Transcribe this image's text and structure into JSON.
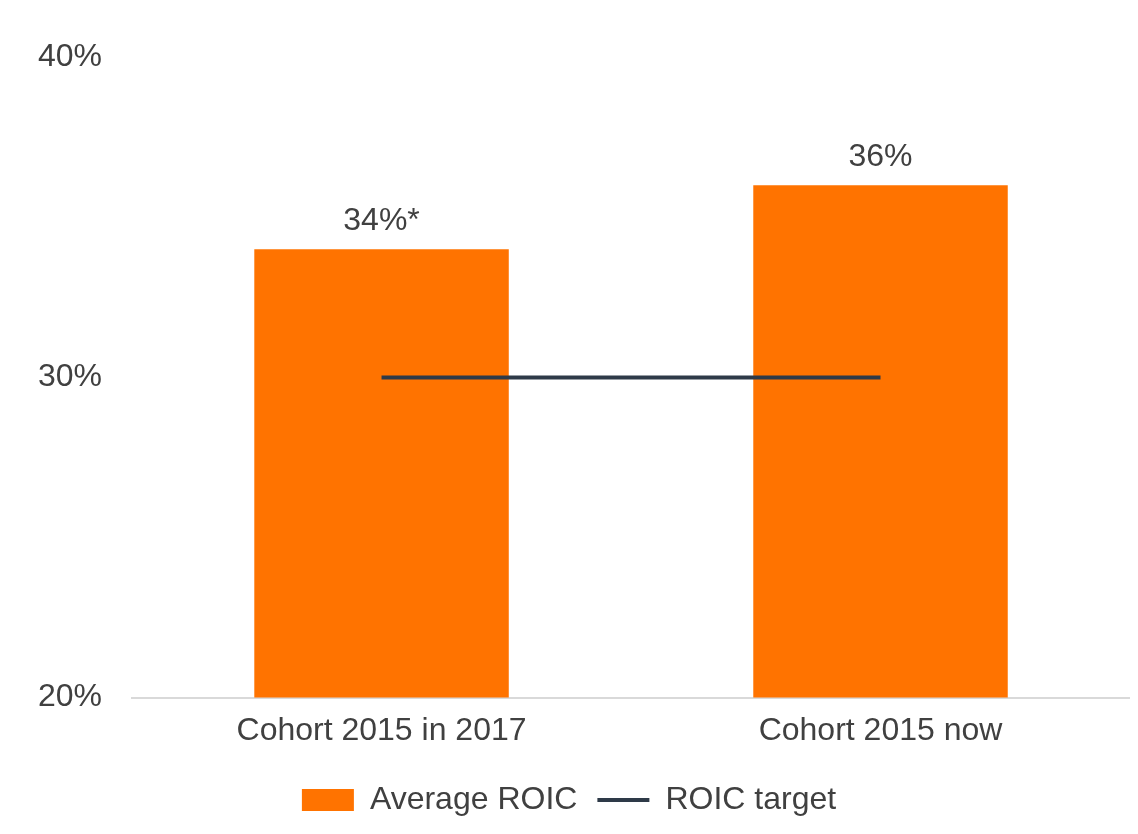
{
  "chart_data": {
    "type": "bar",
    "categories": [
      "Cohort 2015 in 2017",
      "Cohort 2015 now"
    ],
    "series": [
      {
        "name": "Average ROIC",
        "color": "#ff7300",
        "values": [
          34,
          36
        ],
        "value_labels": [
          "34%*",
          "36%"
        ]
      },
      {
        "name": "ROIC target",
        "type": "line",
        "color": "#2e3a48",
        "values": [
          30,
          30
        ],
        "marker": "none",
        "line_style": "solid"
      }
    ],
    "ylim": [
      20,
      40
    ],
    "yticks": [
      {
        "value": 20,
        "label": "20%"
      },
      {
        "value": 30,
        "label": "30%"
      },
      {
        "value": 40,
        "label": "40%"
      }
    ],
    "grid": false,
    "legend": "bottom"
  }
}
